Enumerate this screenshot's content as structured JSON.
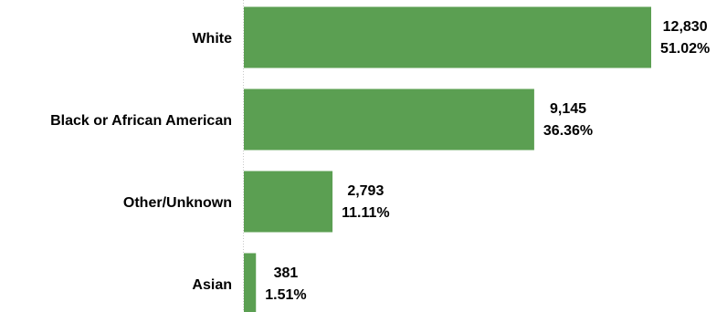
{
  "chart_data": {
    "type": "bar",
    "orientation": "horizontal",
    "categories": [
      "White",
      "Black or African American",
      "Other/Unknown",
      "Asian"
    ],
    "values": [
      12830,
      9145,
      2793,
      381
    ],
    "value_labels": [
      "12,830",
      "9,145",
      "2,793",
      "381"
    ],
    "percent_labels": [
      "51.02%",
      "36.36%",
      "11.11%",
      "1.51%"
    ],
    "title": "",
    "xlabel": "",
    "ylabel": "",
    "xlim": [
      0,
      13500
    ],
    "grid": false,
    "legend": "none",
    "bar_color": "#5b9f52",
    "axis_color": "#c8c8c8"
  }
}
